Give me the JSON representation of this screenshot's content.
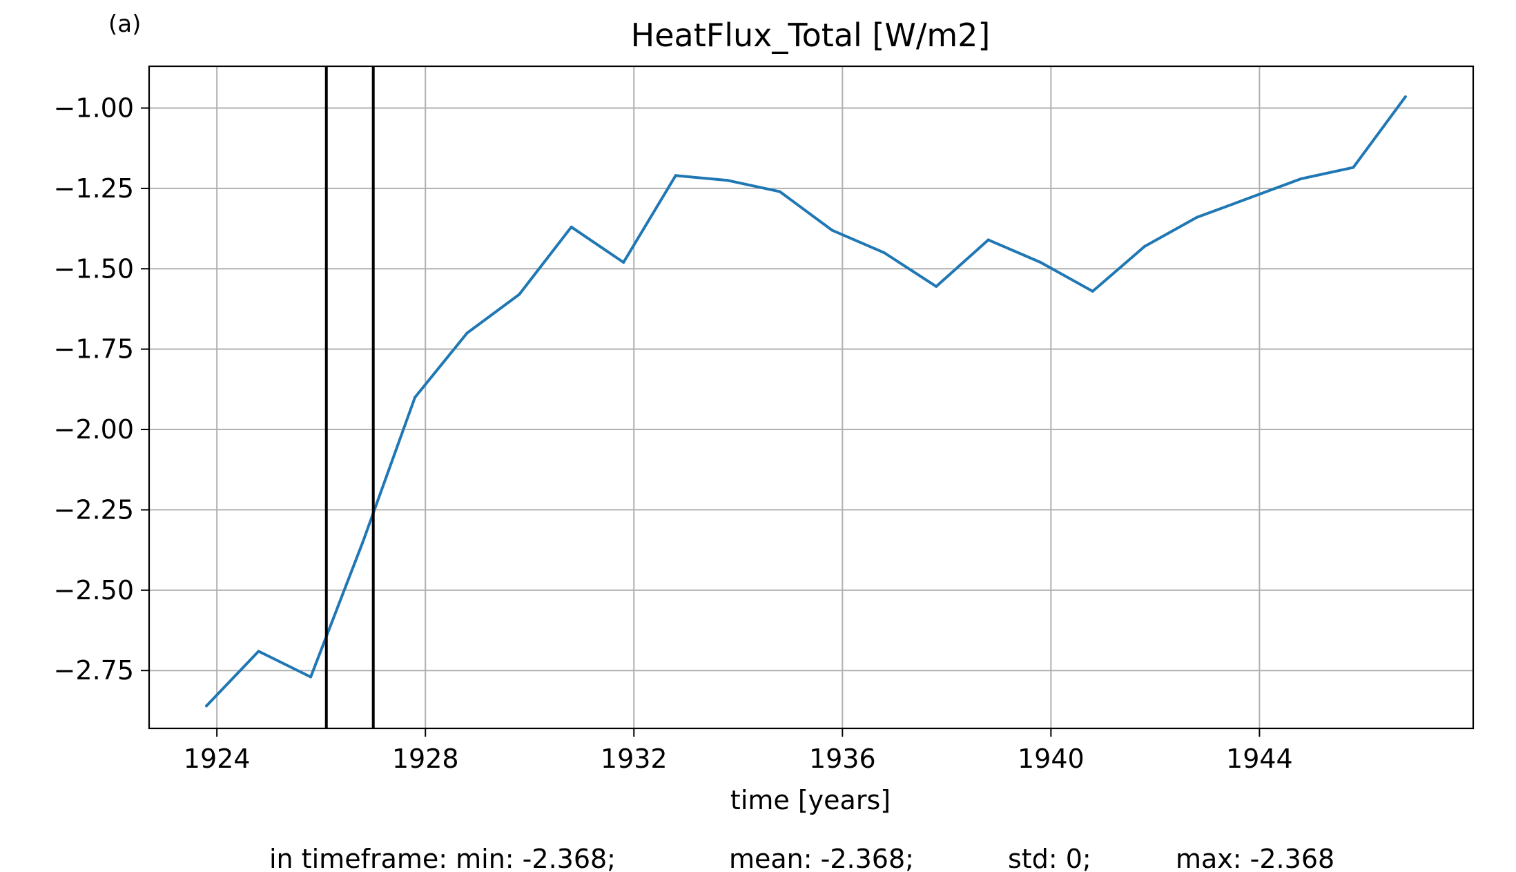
{
  "panel_label": "(a)",
  "chart_data": {
    "type": "line",
    "title": "HeatFlux_Total [W/m2]",
    "xlabel": "time [years]",
    "ylabel": "",
    "xlim": [
      1922.7,
      1948.1
    ],
    "ylim": [
      -2.93,
      -0.87
    ],
    "xticks": [
      1924,
      1928,
      1932,
      1936,
      1940,
      1944
    ],
    "xtick_labels": [
      "1924",
      "1928",
      "1932",
      "1936",
      "1940",
      "1944"
    ],
    "yticks": [
      -1.0,
      -1.25,
      -1.5,
      -1.75,
      -2.0,
      -2.25,
      -2.5,
      -2.75
    ],
    "ytick_labels": [
      "−1.00",
      "−1.25",
      "−1.50",
      "−1.75",
      "−2.00",
      "−2.25",
      "−2.50",
      "−2.75"
    ],
    "grid": true,
    "series": [
      {
        "color": "#1f77b4",
        "x": [
          1923.8,
          1924.8,
          1925.8,
          1926.8,
          1927.8,
          1928.8,
          1929.8,
          1930.8,
          1931.8,
          1932.8,
          1933.8,
          1934.8,
          1935.8,
          1936.8,
          1937.8,
          1938.8,
          1939.8,
          1940.8,
          1941.8,
          1942.8,
          1943.8,
          1944.8,
          1945.8,
          1946.8
        ],
        "y": [
          -2.86,
          -2.69,
          -2.77,
          -2.35,
          -1.9,
          -1.7,
          -1.58,
          -1.37,
          -1.48,
          -1.21,
          -1.225,
          -1.26,
          -1.38,
          -1.45,
          -1.555,
          -1.41,
          -1.48,
          -1.57,
          -1.43,
          -1.34,
          -1.28,
          -1.22,
          -1.185,
          -0.965
        ]
      }
    ],
    "vlines": {
      "color": "#000000",
      "x": [
        1926.1,
        1927.0
      ]
    }
  },
  "stats": {
    "min": "in timeframe: min: -2.368;",
    "mean": "mean: -2.368;",
    "std": "std: 0;",
    "max": "max: -2.368"
  }
}
